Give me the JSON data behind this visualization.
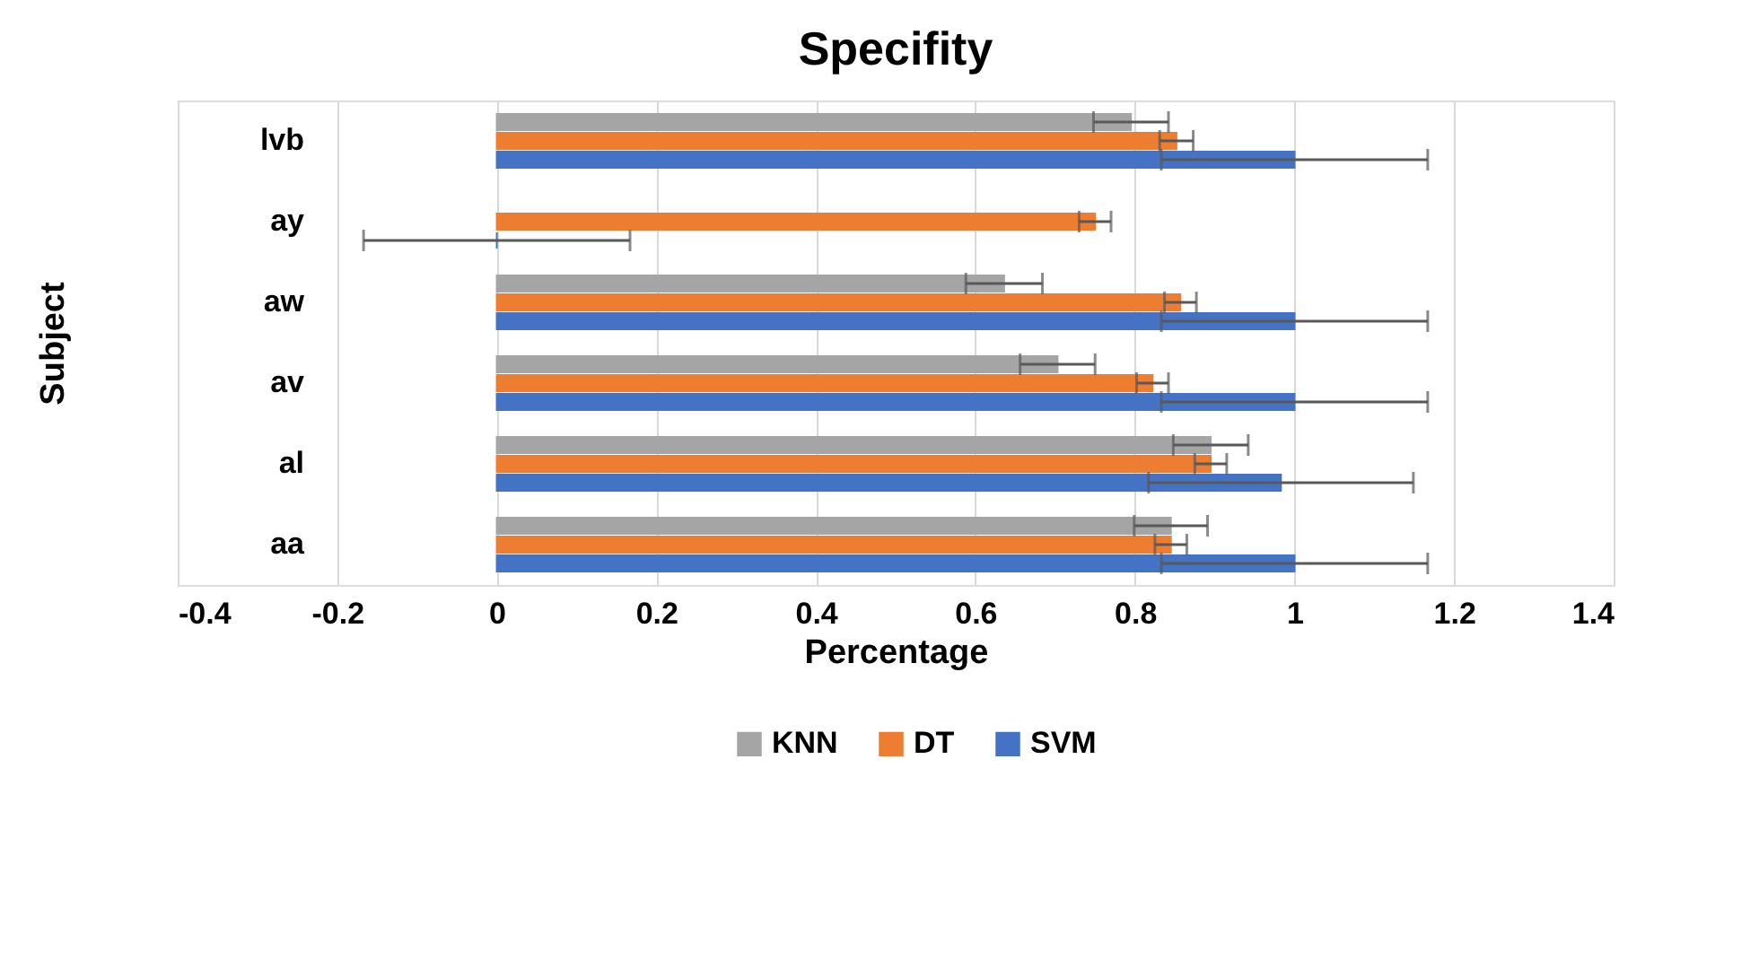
{
  "chart_data": {
    "type": "bar",
    "orientation": "horizontal",
    "title": "Specifity",
    "xlabel": "Percentage",
    "ylabel": "Subject",
    "categories": [
      "lvb",
      "ay",
      "aw",
      "av",
      "al",
      "aa"
    ],
    "series": [
      {
        "name": "KNN",
        "color": "#a5a5a5",
        "values": [
          0.795,
          null,
          0.636,
          0.703,
          0.895,
          0.845
        ],
        "errors": [
          0.047,
          null,
          0.048,
          0.047,
          0.047,
          0.046
        ]
      },
      {
        "name": "DT",
        "color": "#ed7d31",
        "values": [
          0.852,
          0.75,
          0.857,
          0.822,
          0.895,
          0.845
        ],
        "errors": [
          0.021,
          0.02,
          0.02,
          0.02,
          0.02,
          0.02
        ]
      },
      {
        "name": "SVM",
        "color": "#4472c4",
        "values": [
          1.0,
          0.0,
          1.0,
          1.0,
          0.983,
          1.0
        ],
        "errors": [
          0.167,
          0.167,
          0.167,
          0.167,
          0.166,
          0.167
        ]
      }
    ],
    "xlim": [
      -0.4,
      1.4
    ],
    "xticks": [
      -0.4,
      -0.2,
      0,
      0.2,
      0.4,
      0.6,
      0.8,
      1,
      1.2,
      1.4
    ],
    "grid": "x",
    "legend": "bottom"
  }
}
